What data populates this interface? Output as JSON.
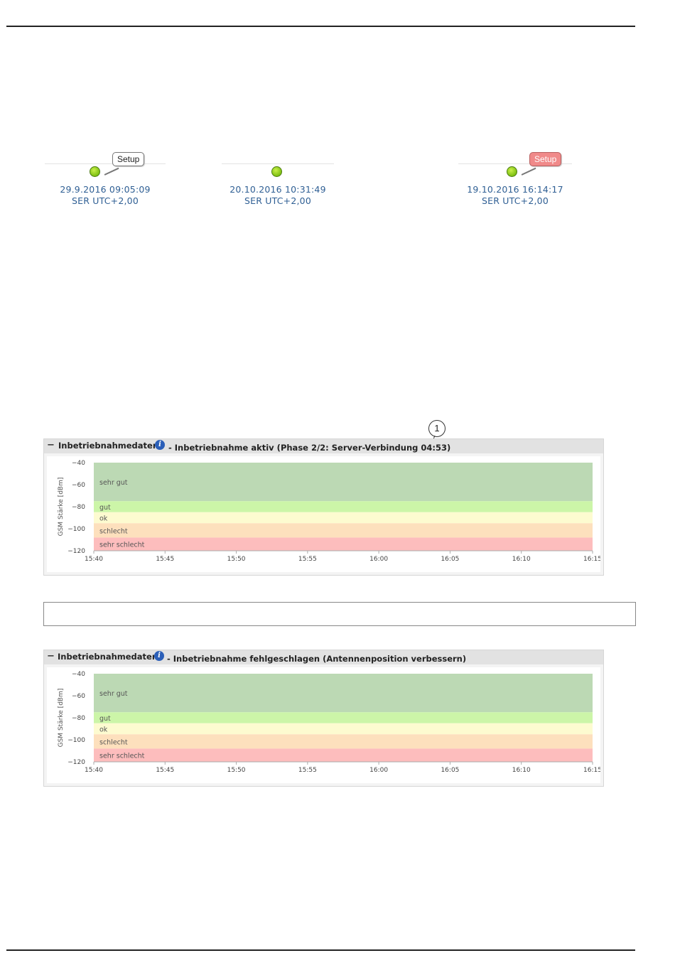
{
  "statuses": [
    {
      "date": "29.9.2016 09:05:09",
      "timezone": "SER UTC+2,00",
      "badge": "Setup",
      "badge_color": "#ffffff"
    },
    {
      "date": "20.10.2016 10:31:49",
      "timezone": "SER UTC+2,00",
      "badge": "",
      "badge_color": ""
    },
    {
      "date": "19.10.2016 16:14:17",
      "timezone": "SER UTC+2,00",
      "badge": "Setup",
      "badge_color": "#f08a8a"
    }
  ],
  "callout": "1",
  "panels": [
    {
      "title": "Inbetriebnahmedaten",
      "collapse": "−",
      "info_icon": "i",
      "status": "- Inbetriebnahme aktiv (Phase 2/2: Server-Verbindung 04:53)"
    },
    {
      "title": "Inbetriebnahmedaten",
      "collapse": "−",
      "info_icon": "i",
      "status": "- Inbetriebnahme fehlgeschlagen (Antennenposition verbessern)"
    }
  ],
  "chart_data": [
    {
      "type": "area",
      "ylabel": "GSM Stärke [dBm]",
      "ylim": [
        -120,
        -40
      ],
      "yticks": [
        -40,
        -60,
        -80,
        -100,
        -120
      ],
      "xticks": [
        "15:40",
        "15:45",
        "15:50",
        "15:55",
        "16:00",
        "16:05",
        "16:10",
        "16:15"
      ],
      "bands": [
        {
          "name": "sehr gut",
          "from": -75,
          "to": -40,
          "color": "#bcd9b4"
        },
        {
          "name": "gut",
          "from": -85,
          "to": -75,
          "color": "#ccf5a8"
        },
        {
          "name": "ok",
          "from": -95,
          "to": -85,
          "color": "#fdfbd0"
        },
        {
          "name": "schlecht",
          "from": -108,
          "to": -95,
          "color": "#fde0bd"
        },
        {
          "name": "sehr schlecht",
          "from": -120,
          "to": -108,
          "color": "#fdbdbd"
        }
      ]
    },
    {
      "type": "area",
      "ylabel": "GSM Stärke [dBm]",
      "ylim": [
        -120,
        -40
      ],
      "yticks": [
        -40,
        -60,
        -80,
        -100,
        -120
      ],
      "xticks": [
        "15:40",
        "15:45",
        "15:50",
        "15:55",
        "16:00",
        "16:05",
        "16:10",
        "16:15"
      ],
      "bands": [
        {
          "name": "sehr gut",
          "from": -75,
          "to": -40,
          "color": "#bcd9b4"
        },
        {
          "name": "gut",
          "from": -85,
          "to": -75,
          "color": "#ccf5a8"
        },
        {
          "name": "ok",
          "from": -95,
          "to": -85,
          "color": "#fdfbd0"
        },
        {
          "name": "schlecht",
          "from": -108,
          "to": -95,
          "color": "#fde0bd"
        },
        {
          "name": "sehr schlecht",
          "from": -120,
          "to": -108,
          "color": "#fdbdbd"
        }
      ]
    }
  ]
}
